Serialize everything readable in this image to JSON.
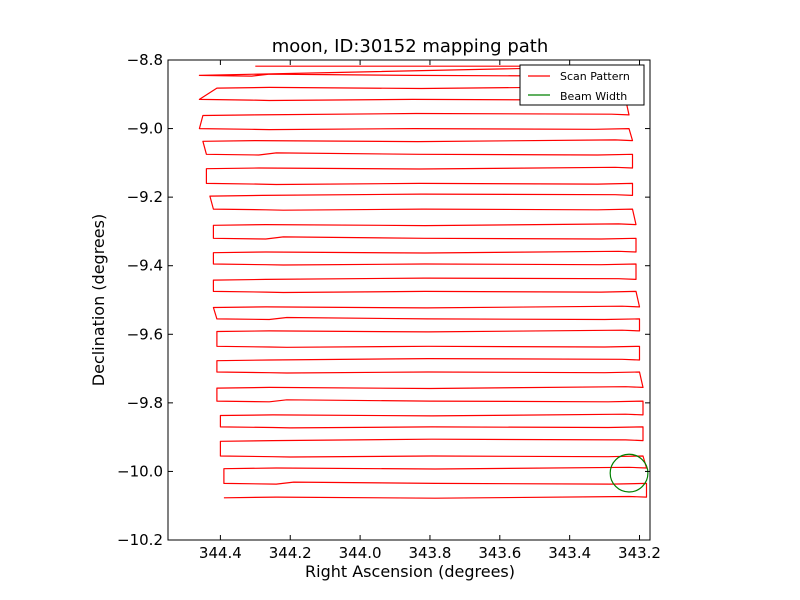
{
  "chart_data": {
    "type": "line",
    "title": "moon, ID:30152 mapping path",
    "xlabel": "Right Ascension (degrees)",
    "ylabel": "Declination (degrees)",
    "xlim": [
      344.55,
      343.17
    ],
    "ylim": [
      -10.2,
      -8.8
    ],
    "x_ticks": [
      344.4,
      344.2,
      344.0,
      343.8,
      343.6,
      343.4,
      343.2
    ],
    "x_tick_labels": [
      "344.4",
      "344.2",
      "344.0",
      "343.8",
      "343.6",
      "343.4",
      "343.2"
    ],
    "y_ticks": [
      -8.8,
      -9.0,
      -9.2,
      -9.4,
      -9.6,
      -9.8,
      -10.0,
      -10.2
    ],
    "y_tick_labels": [
      "−8.8",
      "−9.0",
      "−9.2",
      "−9.4",
      "−9.6",
      "−9.8",
      "−10.0",
      "−10.2"
    ],
    "grid": false,
    "legend_position": "top-right",
    "series": [
      {
        "name": "Scan Pattern",
        "color": "#ff0000",
        "start": [
          344.3,
          -8.818
        ],
        "first_row_end_ra": 343.23,
        "rows": [
          {
            "dec": -8.845,
            "ra_left": 344.46,
            "ra_right": 343.25
          },
          {
            "dec": -8.88,
            "ra_left": 344.41,
            "ra_right": 343.24
          },
          {
            "dec": -8.915,
            "ra_left": 344.46,
            "ra_right": 343.24
          },
          {
            "dec": -8.96,
            "ra_left": 344.45,
            "ra_right": 343.23
          },
          {
            "dec": -9.0,
            "ra_left": 344.46,
            "ra_right": 343.23
          },
          {
            "dec": -9.035,
            "ra_left": 344.45,
            "ra_right": 343.22
          },
          {
            "dec": -9.075,
            "ra_left": 344.44,
            "ra_right": 343.22
          },
          {
            "dec": -9.115,
            "ra_left": 344.44,
            "ra_right": 343.22
          },
          {
            "dec": -9.16,
            "ra_left": 344.44,
            "ra_right": 343.22
          },
          {
            "dec": -9.195,
            "ra_left": 344.43,
            "ra_right": 343.22
          },
          {
            "dec": -9.235,
            "ra_left": 344.42,
            "ra_right": 343.22
          },
          {
            "dec": -9.28,
            "ra_left": 344.42,
            "ra_right": 343.21
          },
          {
            "dec": -9.32,
            "ra_left": 344.42,
            "ra_right": 343.21
          },
          {
            "dec": -9.36,
            "ra_left": 344.42,
            "ra_right": 343.21
          },
          {
            "dec": -9.395,
            "ra_left": 344.42,
            "ra_right": 343.21
          },
          {
            "dec": -9.44,
            "ra_left": 344.42,
            "ra_right": 343.21
          },
          {
            "dec": -9.475,
            "ra_left": 344.42,
            "ra_right": 343.21
          },
          {
            "dec": -9.52,
            "ra_left": 344.42,
            "ra_right": 343.2
          },
          {
            "dec": -9.555,
            "ra_left": 344.41,
            "ra_right": 343.2
          },
          {
            "dec": -9.59,
            "ra_left": 344.41,
            "ra_right": 343.2
          },
          {
            "dec": -9.635,
            "ra_left": 344.41,
            "ra_right": 343.2
          },
          {
            "dec": -9.675,
            "ra_left": 344.41,
            "ra_right": 343.2
          },
          {
            "dec": -9.71,
            "ra_left": 344.41,
            "ra_right": 343.2
          },
          {
            "dec": -9.755,
            "ra_left": 344.41,
            "ra_right": 343.19
          },
          {
            "dec": -9.795,
            "ra_left": 344.41,
            "ra_right": 343.19
          },
          {
            "dec": -9.835,
            "ra_left": 344.4,
            "ra_right": 343.19
          },
          {
            "dec": -9.87,
            "ra_left": 344.4,
            "ra_right": 343.19
          },
          {
            "dec": -9.91,
            "ra_left": 344.4,
            "ra_right": 343.19
          },
          {
            "dec": -9.955,
            "ra_left": 344.4,
            "ra_right": 343.19
          },
          {
            "dec": -9.99,
            "ra_left": 344.39,
            "ra_right": 343.18
          },
          {
            "dec": -10.035,
            "ra_left": 344.39,
            "ra_right": 343.18
          },
          {
            "dec": -10.075,
            "ra_left": 344.39,
            "ra_right": 343.18
          }
        ]
      },
      {
        "name": "Beam Width",
        "color": "#008000",
        "center": [
          343.23,
          -10.005
        ],
        "radius_deg": 0.055
      }
    ]
  }
}
